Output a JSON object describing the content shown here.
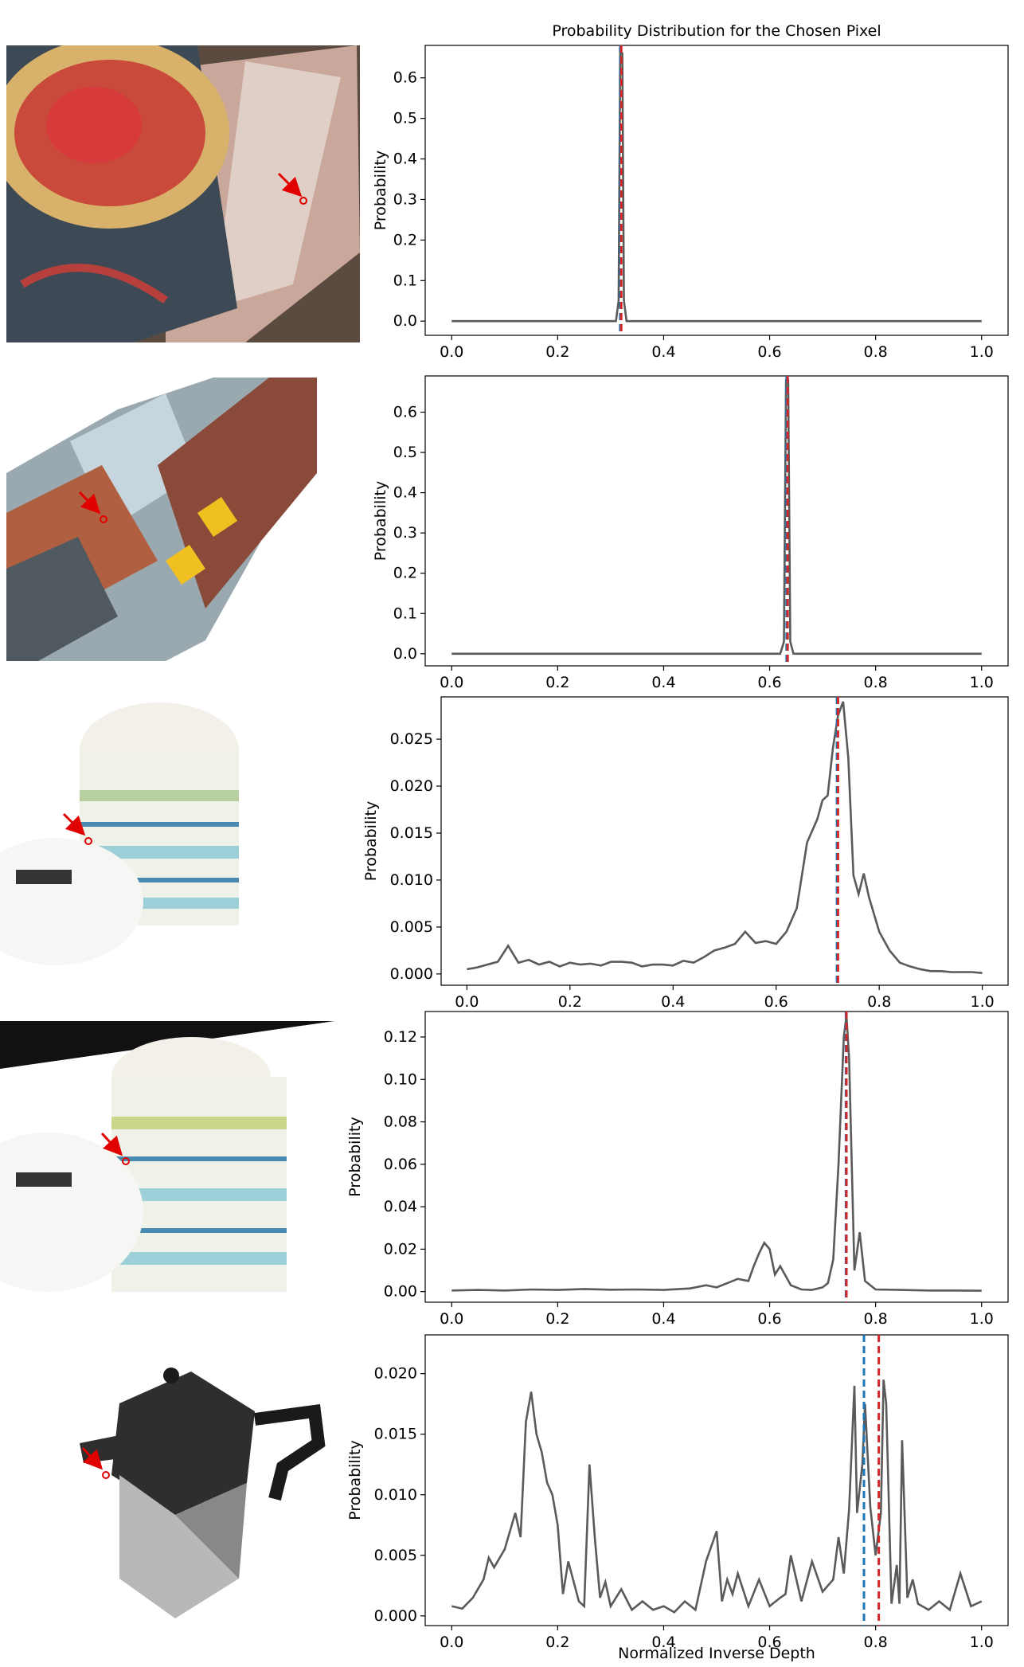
{
  "figure": {
    "title": "Probability Distribution for the Chosen Pixel",
    "xlabel": "Normalized Inverse Depth"
  },
  "colors": {
    "curve": "#5a5a5a",
    "gt_line": "#1f77b4",
    "pred_line": "#d62728",
    "marker": "#e00000"
  },
  "chart_data": [
    {
      "type": "line",
      "ylabel": "Probability",
      "xlim": [
        0,
        1
      ],
      "ylim": [
        -0.035,
        0.68
      ],
      "yticks": [
        0.0,
        0.1,
        0.2,
        0.3,
        0.4,
        0.5,
        0.6
      ],
      "ytick_labels": [
        "0.0",
        "0.1",
        "0.2",
        "0.3",
        "0.4",
        "0.5",
        "0.6"
      ],
      "xticks": [
        0.0,
        0.2,
        0.4,
        0.6,
        0.8,
        1.0
      ],
      "xtick_labels": [
        "0.0",
        "0.2",
        "0.4",
        "0.6",
        "0.8",
        "1.0"
      ],
      "series": [
        {
          "x": [
            0.0,
            0.31,
            0.315,
            0.318,
            0.322,
            0.325,
            0.33,
            1.0
          ],
          "y": [
            0.0,
            0.0,
            0.05,
            0.66,
            0.66,
            0.05,
            0.0,
            0.0
          ]
        }
      ],
      "vlines": [
        {
          "x": 0.318,
          "style": "dashed",
          "color_key": "gt_line"
        },
        {
          "x": 0.32,
          "style": "dashed",
          "color_key": "pred_line"
        }
      ]
    },
    {
      "type": "line",
      "ylabel": "Probability",
      "xlim": [
        0,
        1
      ],
      "ylim": [
        -0.03,
        0.69
      ],
      "yticks": [
        0.0,
        0.1,
        0.2,
        0.3,
        0.4,
        0.5,
        0.6
      ],
      "ytick_labels": [
        "0.0",
        "0.1",
        "0.2",
        "0.3",
        "0.4",
        "0.5",
        "0.6"
      ],
      "xticks": [
        0.0,
        0.2,
        0.4,
        0.6,
        0.8,
        1.0
      ],
      "xtick_labels": [
        "0.0",
        "0.2",
        "0.4",
        "0.6",
        "0.8",
        "1.0"
      ],
      "series": [
        {
          "x": [
            0.0,
            0.62,
            0.627,
            0.631,
            0.635,
            0.639,
            0.645,
            1.0
          ],
          "y": [
            0.0,
            0.0,
            0.03,
            0.68,
            0.68,
            0.03,
            0.0,
            0.0
          ]
        }
      ],
      "vlines": [
        {
          "x": 0.632,
          "style": "dashed",
          "color_key": "gt_line"
        },
        {
          "x": 0.634,
          "style": "dashed",
          "color_key": "pred_line"
        }
      ]
    },
    {
      "type": "line",
      "ylabel": "Probability",
      "xlim": [
        0,
        1
      ],
      "ylim": [
        -0.0012,
        0.0295
      ],
      "yticks": [
        0.0,
        0.005,
        0.01,
        0.015,
        0.02,
        0.025
      ],
      "ytick_labels": [
        "0.000",
        "0.005",
        "0.010",
        "0.015",
        "0.020",
        "0.025"
      ],
      "xticks": [
        0.0,
        0.2,
        0.4,
        0.6,
        0.8,
        1.0
      ],
      "xtick_labels": [
        "0.0",
        "0.2",
        "0.4",
        "0.6",
        "0.8",
        "1.0"
      ],
      "series": [
        {
          "x": [
            0.0,
            0.02,
            0.04,
            0.06,
            0.08,
            0.1,
            0.12,
            0.14,
            0.16,
            0.18,
            0.2,
            0.22,
            0.24,
            0.26,
            0.28,
            0.3,
            0.32,
            0.34,
            0.36,
            0.38,
            0.4,
            0.42,
            0.44,
            0.46,
            0.48,
            0.5,
            0.52,
            0.54,
            0.56,
            0.58,
            0.6,
            0.62,
            0.64,
            0.66,
            0.68,
            0.69,
            0.7,
            0.71,
            0.72,
            0.73,
            0.74,
            0.75,
            0.76,
            0.77,
            0.78,
            0.8,
            0.82,
            0.84,
            0.86,
            0.88,
            0.9,
            0.92,
            0.94,
            0.96,
            0.98,
            1.0
          ],
          "y": [
            0.0005,
            0.0007,
            0.001,
            0.0013,
            0.003,
            0.0012,
            0.0015,
            0.001,
            0.0013,
            0.0008,
            0.0012,
            0.001,
            0.0011,
            0.0009,
            0.0013,
            0.0013,
            0.0012,
            0.0008,
            0.001,
            0.001,
            0.0009,
            0.0014,
            0.0012,
            0.0018,
            0.0025,
            0.0028,
            0.0032,
            0.0045,
            0.0033,
            0.0035,
            0.0032,
            0.0045,
            0.007,
            0.014,
            0.0165,
            0.0185,
            0.019,
            0.024,
            0.0275,
            0.029,
            0.023,
            0.0105,
            0.0085,
            0.0107,
            0.0082,
            0.0045,
            0.0025,
            0.0012,
            0.0008,
            0.0005,
            0.0003,
            0.0003,
            0.0002,
            0.0002,
            0.0002,
            0.0001
          ]
        }
      ],
      "vlines": [
        {
          "x": 0.718,
          "style": "dashed",
          "color_key": "gt_line"
        },
        {
          "x": 0.72,
          "style": "dashed",
          "color_key": "pred_line"
        }
      ]
    },
    {
      "type": "line",
      "ylabel": "Probability",
      "xlim": [
        0,
        1
      ],
      "ylim": [
        -0.005,
        0.132
      ],
      "yticks": [
        0.0,
        0.02,
        0.04,
        0.06,
        0.08,
        0.1,
        0.12
      ],
      "ytick_labels": [
        "0.00",
        "0.02",
        "0.04",
        "0.06",
        "0.08",
        "0.10",
        "0.12"
      ],
      "xticks": [
        0.0,
        0.2,
        0.4,
        0.6,
        0.8,
        1.0
      ],
      "xtick_labels": [
        "0.0",
        "0.2",
        "0.4",
        "0.6",
        "0.8",
        "1.0"
      ],
      "series": [
        {
          "x": [
            0.0,
            0.05,
            0.1,
            0.15,
            0.2,
            0.25,
            0.3,
            0.35,
            0.4,
            0.45,
            0.48,
            0.5,
            0.52,
            0.54,
            0.56,
            0.57,
            0.58,
            0.59,
            0.6,
            0.61,
            0.62,
            0.64,
            0.66,
            0.68,
            0.7,
            0.71,
            0.72,
            0.73,
            0.74,
            0.745,
            0.75,
            0.76,
            0.77,
            0.78,
            0.8,
            0.85,
            0.9,
            0.95,
            1.0
          ],
          "y": [
            0.0005,
            0.0008,
            0.0005,
            0.001,
            0.0008,
            0.0012,
            0.0009,
            0.001,
            0.0008,
            0.0015,
            0.003,
            0.002,
            0.004,
            0.006,
            0.005,
            0.012,
            0.018,
            0.023,
            0.02,
            0.008,
            0.012,
            0.003,
            0.001,
            0.0008,
            0.002,
            0.004,
            0.015,
            0.06,
            0.12,
            0.13,
            0.11,
            0.01,
            0.028,
            0.005,
            0.001,
            0.0008,
            0.0005,
            0.0005,
            0.0004
          ]
        }
      ],
      "vlines": [
        {
          "x": 0.744,
          "style": "dashed",
          "color_key": "gt_line"
        },
        {
          "x": 0.745,
          "style": "dashed",
          "color_key": "pred_line"
        }
      ]
    },
    {
      "type": "line",
      "ylabel": "Probability",
      "xlim": [
        0,
        1
      ],
      "ylim": [
        -0.0008,
        0.0232
      ],
      "yticks": [
        0.0,
        0.005,
        0.01,
        0.015,
        0.02
      ],
      "ytick_labels": [
        "0.000",
        "0.005",
        "0.010",
        "0.015",
        "0.020"
      ],
      "xticks": [
        0.0,
        0.2,
        0.4,
        0.6,
        0.8,
        1.0
      ],
      "xtick_labels": [
        "0.0",
        "0.2",
        "0.4",
        "0.6",
        "0.8",
        "1.0"
      ],
      "series": [
        {
          "x": [
            0.0,
            0.02,
            0.04,
            0.06,
            0.07,
            0.08,
            0.1,
            0.12,
            0.13,
            0.14,
            0.15,
            0.16,
            0.17,
            0.18,
            0.19,
            0.2,
            0.21,
            0.22,
            0.24,
            0.25,
            0.26,
            0.27,
            0.28,
            0.29,
            0.3,
            0.32,
            0.34,
            0.36,
            0.38,
            0.4,
            0.42,
            0.44,
            0.46,
            0.48,
            0.5,
            0.51,
            0.52,
            0.53,
            0.54,
            0.56,
            0.58,
            0.6,
            0.62,
            0.63,
            0.64,
            0.66,
            0.68,
            0.7,
            0.72,
            0.73,
            0.74,
            0.75,
            0.76,
            0.765,
            0.77,
            0.775,
            0.78,
            0.79,
            0.8,
            0.81,
            0.815,
            0.82,
            0.83,
            0.84,
            0.845,
            0.85,
            0.86,
            0.87,
            0.88,
            0.9,
            0.92,
            0.94,
            0.96,
            0.98,
            1.0
          ],
          "y": [
            0.0008,
            0.0006,
            0.0015,
            0.003,
            0.0048,
            0.004,
            0.0055,
            0.0085,
            0.0065,
            0.016,
            0.0185,
            0.015,
            0.0135,
            0.011,
            0.01,
            0.0075,
            0.0018,
            0.0045,
            0.0012,
            0.0008,
            0.0125,
            0.0065,
            0.0015,
            0.0028,
            0.0008,
            0.0022,
            0.0005,
            0.0012,
            0.0005,
            0.0008,
            0.0003,
            0.0012,
            0.0005,
            0.0045,
            0.007,
            0.0012,
            0.003,
            0.0018,
            0.0035,
            0.0008,
            0.003,
            0.0008,
            0.0015,
            0.0018,
            0.005,
            0.0012,
            0.0045,
            0.002,
            0.003,
            0.0065,
            0.0035,
            0.0088,
            0.019,
            0.0085,
            0.0105,
            0.0125,
            0.0175,
            0.009,
            0.005,
            0.0085,
            0.0195,
            0.0175,
            0.001,
            0.0042,
            0.001,
            0.0145,
            0.0015,
            0.003,
            0.001,
            0.0005,
            0.0012,
            0.0005,
            0.0035,
            0.0008,
            0.0012
          ]
        }
      ],
      "vlines": [
        {
          "x": 0.778,
          "style": "dashed",
          "color_key": "gt_line"
        },
        {
          "x": 0.806,
          "style": "dashed",
          "color_key": "pred_line"
        }
      ]
    }
  ]
}
